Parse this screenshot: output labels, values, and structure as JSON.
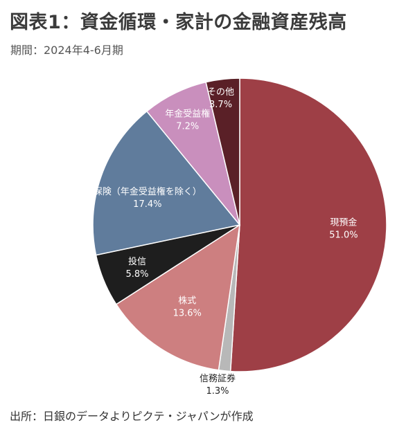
{
  "header": {
    "title": "図表1：資金循環・家計の金融資産残高",
    "subtitle": "期間：2024年4-6月期"
  },
  "footer": {
    "source": "出所：日銀のデータよりピクテ・ジャパンが作成"
  },
  "chart_data": {
    "type": "pie",
    "start_angle": "12 o'clock",
    "direction": "clockwise",
    "slices": [
      {
        "label": "現預金",
        "value": 51.0,
        "value_label": "51.0%",
        "color": "#9e3f46",
        "text_color": "#ffffff"
      },
      {
        "label": "信務証券",
        "value": 1.3,
        "value_label": "1.3%",
        "color": "#b8b8b8",
        "text_color": "#222222"
      },
      {
        "label": "株式",
        "value": 13.6,
        "value_label": "13.6%",
        "color": "#cd7f80",
        "text_color": "#ffffff"
      },
      {
        "label": "投信",
        "value": 5.8,
        "value_label": "5.8%",
        "color": "#1e1e1e",
        "text_color": "#ffffff"
      },
      {
        "label": "保険（年金受益権を除く）",
        "value": 17.4,
        "value_label": "17.4%",
        "color": "#607c9c",
        "text_color": "#ffffff"
      },
      {
        "label": "年金受益権",
        "value": 7.2,
        "value_label": "7.2%",
        "color": "#c98fbd",
        "text_color": "#ffffff"
      },
      {
        "label": "その他",
        "value": 3.7,
        "value_label": "3.7%",
        "color": "#5a2027",
        "text_color": "#ffffff"
      }
    ]
  }
}
